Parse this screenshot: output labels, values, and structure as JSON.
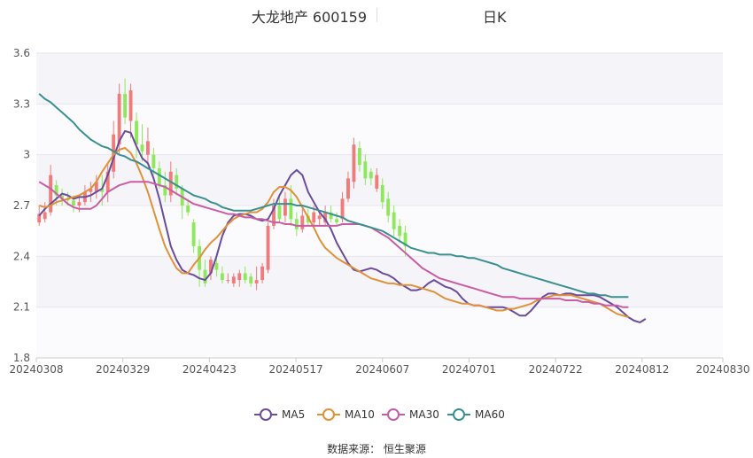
{
  "title": {
    "name": "大龙地产 600159",
    "period": "日K"
  },
  "source": "数据来源：  恒生聚源",
  "legend": [
    {
      "label": "MA5",
      "color": "#6a4c9c"
    },
    {
      "label": "MA10",
      "color": "#e0913a"
    },
    {
      "label": "MA30",
      "color": "#c95da3"
    },
    {
      "label": "MA60",
      "color": "#3a8f8f"
    }
  ],
  "chart_data": {
    "type": "candlestick",
    "title": "大龙地产 600159",
    "period": "日K",
    "ylim": [
      1.8,
      3.6
    ],
    "y_ticks": [
      "1.8",
      "2.1",
      "2.4",
      "2.7",
      "3",
      "3.3",
      "3.6"
    ],
    "x_tick_labels": [
      "20240308",
      "20240329",
      "20240423",
      "20240517",
      "20240607",
      "20240701",
      "20240722",
      "20240812",
      "20240830"
    ],
    "x_tick_positions": [
      0,
      15,
      30,
      45,
      60,
      75,
      90,
      105,
      119
    ],
    "grid": true,
    "up_color": "#f07b7b",
    "down_color": "#8fe85b",
    "moving_averages": [
      {
        "name": "MA5",
        "color": "#6a4c9c",
        "values": [
          2.64,
          2.68,
          2.71,
          2.74,
          2.77,
          2.76,
          2.74,
          2.75,
          2.75,
          2.76,
          2.78,
          2.8,
          2.88,
          2.98,
          3.08,
          3.14,
          3.13,
          3.05,
          2.98,
          2.95,
          2.86,
          2.74,
          2.6,
          2.46,
          2.38,
          2.32,
          2.3,
          2.29,
          2.27,
          2.26,
          2.3,
          2.4,
          2.52,
          2.6,
          2.64,
          2.65,
          2.65,
          2.64,
          2.62,
          2.61,
          2.62,
          2.68,
          2.76,
          2.82,
          2.88,
          2.91,
          2.88,
          2.78,
          2.72,
          2.66,
          2.62,
          2.56,
          2.48,
          2.42,
          2.36,
          2.32,
          2.31,
          2.32,
          2.33,
          2.32,
          2.3,
          2.29,
          2.27,
          2.24,
          2.22,
          2.2,
          2.2,
          2.21,
          2.24,
          2.26,
          2.24,
          2.22,
          2.21,
          2.19,
          2.15,
          2.12,
          2.11,
          2.11,
          2.1,
          2.1,
          2.1,
          2.1,
          2.09,
          2.07,
          2.05,
          2.05,
          2.08,
          2.12,
          2.16,
          2.18,
          2.18,
          2.17,
          2.18,
          2.18,
          2.17,
          2.17,
          2.17,
          2.17,
          2.16,
          2.14,
          2.12,
          2.1,
          2.07,
          2.04,
          2.02,
          2.01,
          2.03
        ]
      },
      {
        "name": "MA10",
        "color": "#e0913a",
        "values": [
          2.7,
          2.69,
          2.7,
          2.72,
          2.73,
          2.74,
          2.75,
          2.76,
          2.78,
          2.8,
          2.84,
          2.9,
          2.95,
          3.0,
          3.03,
          3.04,
          3.01,
          2.95,
          2.87,
          2.78,
          2.67,
          2.56,
          2.46,
          2.39,
          2.33,
          2.3,
          2.3,
          2.35,
          2.39,
          2.44,
          2.48,
          2.51,
          2.55,
          2.59,
          2.62,
          2.64,
          2.65,
          2.66,
          2.66,
          2.68,
          2.72,
          2.78,
          2.81,
          2.81,
          2.79,
          2.75,
          2.69,
          2.63,
          2.57,
          2.5,
          2.45,
          2.42,
          2.39,
          2.37,
          2.35,
          2.33,
          2.31,
          2.29,
          2.27,
          2.26,
          2.25,
          2.24,
          2.24,
          2.23,
          2.23,
          2.23,
          2.22,
          2.21,
          2.2,
          2.19,
          2.17,
          2.15,
          2.14,
          2.13,
          2.12,
          2.12,
          2.11,
          2.11,
          2.1,
          2.09,
          2.08,
          2.08,
          2.09,
          2.09,
          2.1,
          2.11,
          2.12,
          2.14,
          2.15,
          2.16,
          2.17,
          2.17,
          2.17,
          2.17,
          2.16,
          2.15,
          2.14,
          2.13,
          2.12,
          2.1,
          2.08,
          2.06,
          2.05,
          2.04
        ]
      },
      {
        "name": "MA30",
        "color": "#c95da3",
        "values": [
          2.84,
          2.82,
          2.8,
          2.77,
          2.74,
          2.71,
          2.69,
          2.68,
          2.68,
          2.68,
          2.7,
          2.74,
          2.78,
          2.8,
          2.82,
          2.83,
          2.84,
          2.84,
          2.84,
          2.84,
          2.83,
          2.82,
          2.81,
          2.79,
          2.77,
          2.75,
          2.73,
          2.71,
          2.7,
          2.69,
          2.68,
          2.67,
          2.66,
          2.65,
          2.65,
          2.64,
          2.63,
          2.63,
          2.62,
          2.62,
          2.61,
          2.6,
          2.6,
          2.59,
          2.59,
          2.58,
          2.58,
          2.58,
          2.58,
          2.58,
          2.58,
          2.58,
          2.58,
          2.59,
          2.59,
          2.59,
          2.59,
          2.58,
          2.57,
          2.55,
          2.53,
          2.51,
          2.48,
          2.45,
          2.42,
          2.39,
          2.36,
          2.33,
          2.31,
          2.29,
          2.27,
          2.26,
          2.25,
          2.24,
          2.23,
          2.22,
          2.21,
          2.2,
          2.19,
          2.18,
          2.17,
          2.16,
          2.16,
          2.16,
          2.15,
          2.15,
          2.15,
          2.15,
          2.15,
          2.15,
          2.15,
          2.15,
          2.14,
          2.14,
          2.14,
          2.13,
          2.13,
          2.12,
          2.12,
          2.11,
          2.11,
          2.11,
          2.1,
          2.1
        ]
      },
      {
        "name": "MA60",
        "color": "#3a8f8f",
        "values": [
          3.36,
          3.33,
          3.31,
          3.28,
          3.25,
          3.22,
          3.19,
          3.15,
          3.12,
          3.09,
          3.07,
          3.05,
          3.04,
          3.02,
          3.0,
          2.99,
          2.97,
          2.96,
          2.94,
          2.92,
          2.9,
          2.88,
          2.86,
          2.84,
          2.82,
          2.8,
          2.78,
          2.76,
          2.75,
          2.74,
          2.72,
          2.71,
          2.69,
          2.68,
          2.67,
          2.67,
          2.67,
          2.67,
          2.68,
          2.69,
          2.7,
          2.71,
          2.71,
          2.71,
          2.71,
          2.7,
          2.7,
          2.69,
          2.68,
          2.67,
          2.66,
          2.65,
          2.64,
          2.63,
          2.61,
          2.6,
          2.59,
          2.58,
          2.57,
          2.56,
          2.55,
          2.53,
          2.51,
          2.49,
          2.47,
          2.45,
          2.44,
          2.43,
          2.42,
          2.42,
          2.41,
          2.41,
          2.41,
          2.4,
          2.4,
          2.39,
          2.39,
          2.38,
          2.37,
          2.36,
          2.35,
          2.33,
          2.32,
          2.31,
          2.3,
          2.29,
          2.28,
          2.27,
          2.26,
          2.25,
          2.24,
          2.23,
          2.22,
          2.21,
          2.2,
          2.19,
          2.18,
          2.18,
          2.17,
          2.17,
          2.16,
          2.16,
          2.16,
          2.16
        ]
      }
    ],
    "candles": [
      {
        "o": 2.6,
        "c": 2.65,
        "h": 2.7,
        "l": 2.58
      },
      {
        "o": 2.62,
        "c": 2.66,
        "h": 2.72,
        "l": 2.6
      },
      {
        "o": 2.66,
        "c": 2.88,
        "h": 2.94,
        "l": 2.64
      },
      {
        "o": 2.82,
        "c": 2.76,
        "h": 2.85,
        "l": 2.7
      },
      {
        "o": 2.76,
        "c": 2.74,
        "h": 2.8,
        "l": 2.7
      },
      {
        "o": 2.74,
        "c": 2.73,
        "h": 2.78,
        "l": 2.7
      },
      {
        "o": 2.73,
        "c": 2.7,
        "h": 2.76,
        "l": 2.66
      },
      {
        "o": 2.7,
        "c": 2.72,
        "h": 2.76,
        "l": 2.66
      },
      {
        "o": 2.72,
        "c": 2.78,
        "h": 2.82,
        "l": 2.7
      },
      {
        "o": 2.78,
        "c": 2.8,
        "h": 2.84,
        "l": 2.72
      },
      {
        "o": 2.78,
        "c": 2.84,
        "h": 2.88,
        "l": 2.74
      },
      {
        "o": 2.8,
        "c": 2.78,
        "h": 2.88,
        "l": 2.7
      },
      {
        "o": 2.78,
        "c": 2.9,
        "h": 2.95,
        "l": 2.72
      },
      {
        "o": 2.9,
        "c": 3.12,
        "h": 3.2,
        "l": 2.86
      },
      {
        "o": 3.06,
        "c": 3.36,
        "h": 3.42,
        "l": 3.0
      },
      {
        "o": 3.36,
        "c": 3.22,
        "h": 3.45,
        "l": 3.18
      },
      {
        "o": 3.2,
        "c": 3.38,
        "h": 3.42,
        "l": 3.1
      },
      {
        "o": 3.2,
        "c": 3.06,
        "h": 3.25,
        "l": 2.98
      },
      {
        "o": 3.06,
        "c": 3.02,
        "h": 3.18,
        "l": 2.96
      },
      {
        "o": 3.0,
        "c": 3.08,
        "h": 3.16,
        "l": 2.94
      },
      {
        "o": 3.0,
        "c": 2.92,
        "h": 3.04,
        "l": 2.88
      },
      {
        "o": 2.92,
        "c": 2.82,
        "h": 2.96,
        "l": 2.8
      },
      {
        "o": 2.82,
        "c": 2.76,
        "h": 2.9,
        "l": 2.72
      },
      {
        "o": 2.76,
        "c": 2.9,
        "h": 2.96,
        "l": 2.72
      },
      {
        "o": 2.88,
        "c": 2.8,
        "h": 2.92,
        "l": 2.76
      },
      {
        "o": 2.8,
        "c": 2.7,
        "h": 2.82,
        "l": 2.62
      },
      {
        "o": 2.7,
        "c": 2.66,
        "h": 2.74,
        "l": 2.64
      },
      {
        "o": 2.6,
        "c": 2.46,
        "h": 2.62,
        "l": 2.42
      },
      {
        "o": 2.46,
        "c": 2.32,
        "h": 2.5,
        "l": 2.22
      },
      {
        "o": 2.32,
        "c": 2.24,
        "h": 2.38,
        "l": 2.22
      },
      {
        "o": 2.3,
        "c": 2.38,
        "h": 2.4,
        "l": 2.26
      },
      {
        "o": 2.36,
        "c": 2.32,
        "h": 2.4,
        "l": 2.28
      },
      {
        "o": 2.3,
        "c": 2.26,
        "h": 2.34,
        "l": 2.24
      },
      {
        "o": 2.26,
        "c": 2.26,
        "h": 2.3,
        "l": 2.24
      },
      {
        "o": 2.24,
        "c": 2.28,
        "h": 2.3,
        "l": 2.22
      },
      {
        "o": 2.26,
        "c": 2.3,
        "h": 2.32,
        "l": 2.22
      },
      {
        "o": 2.3,
        "c": 2.26,
        "h": 2.34,
        "l": 2.24
      },
      {
        "o": 2.28,
        "c": 2.24,
        "h": 2.3,
        "l": 2.22
      },
      {
        "o": 2.24,
        "c": 2.26,
        "h": 2.34,
        "l": 2.2
      },
      {
        "o": 2.26,
        "c": 2.34,
        "h": 2.36,
        "l": 2.24
      },
      {
        "o": 2.32,
        "c": 2.58,
        "h": 2.6,
        "l": 2.3
      },
      {
        "o": 2.58,
        "c": 2.7,
        "h": 2.74,
        "l": 2.56
      },
      {
        "o": 2.7,
        "c": 2.62,
        "h": 2.76,
        "l": 2.6
      },
      {
        "o": 2.64,
        "c": 2.74,
        "h": 2.78,
        "l": 2.6
      },
      {
        "o": 2.74,
        "c": 2.62,
        "h": 2.82,
        "l": 2.58
      },
      {
        "o": 2.62,
        "c": 2.56,
        "h": 2.66,
        "l": 2.52
      },
      {
        "o": 2.56,
        "c": 2.64,
        "h": 2.68,
        "l": 2.54
      },
      {
        "o": 2.64,
        "c": 2.6,
        "h": 2.68,
        "l": 2.58
      },
      {
        "o": 2.6,
        "c": 2.66,
        "h": 2.7,
        "l": 2.58
      },
      {
        "o": 2.62,
        "c": 2.64,
        "h": 2.66,
        "l": 2.58
      },
      {
        "o": 2.6,
        "c": 2.66,
        "h": 2.7,
        "l": 2.58
      },
      {
        "o": 2.66,
        "c": 2.62,
        "h": 2.7,
        "l": 2.6
      },
      {
        "o": 2.62,
        "c": 2.6,
        "h": 2.66,
        "l": 2.58
      },
      {
        "o": 2.62,
        "c": 2.74,
        "h": 2.78,
        "l": 2.6
      },
      {
        "o": 2.74,
        "c": 2.86,
        "h": 2.9,
        "l": 2.72
      },
      {
        "o": 2.84,
        "c": 3.06,
        "h": 3.1,
        "l": 2.8
      },
      {
        "o": 3.04,
        "c": 2.94,
        "h": 3.08,
        "l": 2.9
      },
      {
        "o": 2.96,
        "c": 2.86,
        "h": 3.0,
        "l": 2.82
      },
      {
        "o": 2.9,
        "c": 2.86,
        "h": 2.92,
        "l": 2.82
      },
      {
        "o": 2.8,
        "c": 2.88,
        "h": 2.92,
        "l": 2.78
      },
      {
        "o": 2.82,
        "c": 2.72,
        "h": 2.86,
        "l": 2.68
      },
      {
        "o": 2.74,
        "c": 2.64,
        "h": 2.78,
        "l": 2.6
      },
      {
        "o": 2.66,
        "c": 2.56,
        "h": 2.7,
        "l": 2.52
      },
      {
        "o": 2.58,
        "c": 2.52,
        "h": 2.62,
        "l": 2.48
      },
      {
        "o": 2.54,
        "c": 2.46,
        "h": 2.58,
        "l": 2.4
      }
    ]
  }
}
